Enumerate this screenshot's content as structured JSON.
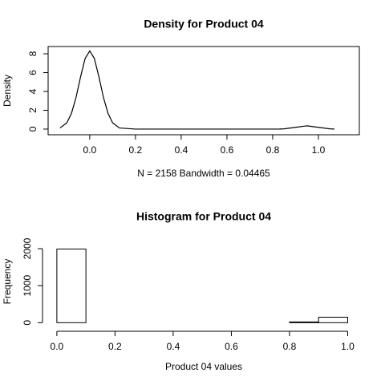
{
  "chart_data": [
    {
      "type": "line",
      "title": "Density for Product 04",
      "x_label": "N = 2158   Bandwidth = 0.04465",
      "y_label": "Density",
      "x": [
        -0.13,
        -0.1,
        -0.08,
        -0.06,
        -0.04,
        -0.02,
        0,
        0.02,
        0.04,
        0.06,
        0.08,
        0.1,
        0.13,
        0.2,
        0.4,
        0.6,
        0.8,
        0.83,
        0.85,
        0.9,
        0.95,
        1.0,
        1.05,
        1.07
      ],
      "values": [
        0.12,
        0.67,
        1.67,
        3.36,
        5.56,
        7.51,
        8.3,
        7.51,
        5.56,
        3.36,
        1.67,
        0.67,
        0.12,
        0,
        0,
        0,
        0,
        0.01,
        0.03,
        0.19,
        0.35,
        0.19,
        0.03,
        0.01
      ],
      "color": "#000000",
      "box": true,
      "xlim": [
        -0.182,
        1.179
      ],
      "ylim": [
        -0.6,
        8.77
      ],
      "xticks": [
        {
          "value": 0,
          "label": "0.0"
        },
        {
          "value": 0.2,
          "label": "0.2"
        },
        {
          "value": 0.4,
          "label": "0.4"
        },
        {
          "value": 0.6,
          "label": "0.6"
        },
        {
          "value": 0.8,
          "label": "0.8"
        },
        {
          "value": 1,
          "label": "1.0"
        }
      ],
      "yticks": [
        0,
        2,
        4,
        6,
        8
      ]
    },
    {
      "type": "histogram",
      "title": "Histogram for Product 04",
      "x_label": "Product 04 values",
      "y_label": "Frequency",
      "bins": [
        0,
        0.1,
        0.2,
        0.3,
        0.4,
        0.5,
        0.6,
        0.7,
        0.8,
        0.9,
        1.0
      ],
      "values": [
        1990,
        0,
        0,
        0,
        0,
        0,
        0,
        0,
        20,
        148
      ],
      "color": "#000000",
      "box": false,
      "xlim": [
        -0.03,
        1.04
      ],
      "ylim": [
        -80,
        2260
      ],
      "xticks": [
        {
          "value": 0,
          "label": "0.0"
        },
        {
          "value": 0.2,
          "label": "0.2"
        },
        {
          "value": 0.4,
          "label": "0.4"
        },
        {
          "value": 0.6,
          "label": "0.6"
        },
        {
          "value": 0.8,
          "label": "0.8"
        },
        {
          "value": 1,
          "label": "1.0"
        }
      ],
      "yticks": [
        0,
        1000,
        2000
      ]
    }
  ]
}
